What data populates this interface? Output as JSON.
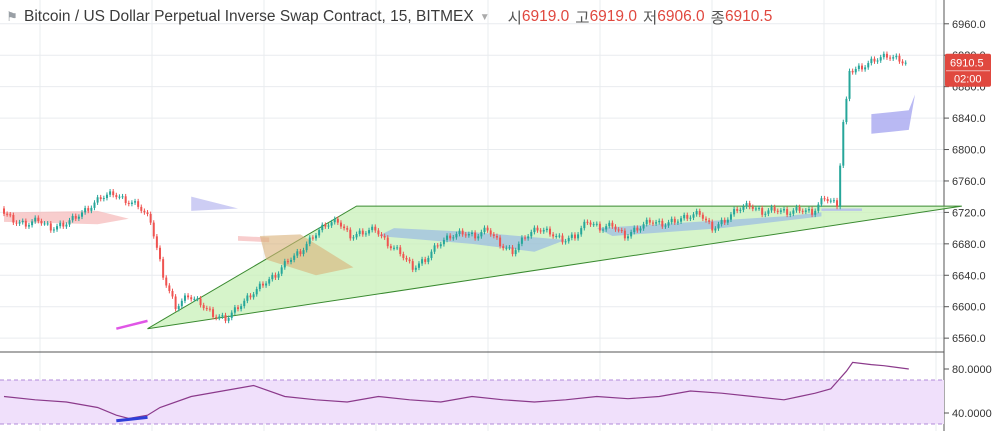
{
  "header": {
    "title": "Bitcoin / US Dollar Perpetual Inverse Swap Contract, 15, BITMEX",
    "caret_icon": "chevron-down-icon",
    "ohlc": [
      {
        "key": "시",
        "value": "6919.0"
      },
      {
        "key": "고",
        "value": "6919.0"
      },
      {
        "key": "저",
        "value": "6906.0"
      },
      {
        "key": "종",
        "value": "6910.5"
      }
    ],
    "value_color": "#e0483f"
  },
  "price_axis": {
    "ticks": [
      "6960.0",
      "6920.0",
      "6880.0",
      "6840.0",
      "6800.0",
      "6760.0",
      "6720.0",
      "6680.0",
      "6640.0",
      "6600.0",
      "6560.0"
    ],
    "last_price": "6910.5",
    "countdown": "02:00",
    "badge_color": "#e0483f"
  },
  "rsi_axis": {
    "ticks": [
      "80.0000",
      "40.0000"
    ]
  },
  "chart_data": [
    {
      "type": "candlestick",
      "symbol": "XBTUSD",
      "interval": "15",
      "ylim": [
        6550,
        6975
      ],
      "path_close": [
        [
          0,
          6725
        ],
        [
          4,
          6710
        ],
        [
          8,
          6705
        ],
        [
          12,
          6712
        ],
        [
          16,
          6700
        ],
        [
          20,
          6705
        ],
        [
          24,
          6715
        ],
        [
          28,
          6725
        ],
        [
          32,
          6740
        ],
        [
          36,
          6745
        ],
        [
          40,
          6735
        ],
        [
          44,
          6730
        ],
        [
          48,
          6710
        ],
        [
          52,
          6640
        ],
        [
          56,
          6600
        ],
        [
          60,
          6615
        ],
        [
          64,
          6605
        ],
        [
          68,
          6590
        ],
        [
          72,
          6585
        ],
        [
          76,
          6600
        ],
        [
          80,
          6615
        ],
        [
          84,
          6630
        ],
        [
          88,
          6640
        ],
        [
          92,
          6660
        ],
        [
          96,
          6670
        ],
        [
          100,
          6690
        ],
        [
          104,
          6705
        ],
        [
          108,
          6710
        ],
        [
          112,
          6690
        ],
        [
          116,
          6695
        ],
        [
          120,
          6700
        ],
        [
          124,
          6680
        ],
        [
          128,
          6670
        ],
        [
          132,
          6650
        ],
        [
          136,
          6660
        ],
        [
          140,
          6680
        ],
        [
          144,
          6690
        ],
        [
          148,
          6695
        ],
        [
          152,
          6690
        ],
        [
          156,
          6700
        ],
        [
          160,
          6680
        ],
        [
          164,
          6670
        ],
        [
          168,
          6690
        ],
        [
          172,
          6700
        ],
        [
          176,
          6695
        ],
        [
          180,
          6685
        ],
        [
          184,
          6690
        ],
        [
          188,
          6710
        ],
        [
          192,
          6700
        ],
        [
          196,
          6705
        ],
        [
          200,
          6690
        ],
        [
          204,
          6700
        ],
        [
          208,
          6710
        ],
        [
          212,
          6705
        ],
        [
          216,
          6710
        ],
        [
          220,
          6715
        ],
        [
          224,
          6720
        ],
        [
          228,
          6700
        ],
        [
          232,
          6710
        ],
        [
          236,
          6725
        ],
        [
          240,
          6730
        ],
        [
          244,
          6720
        ],
        [
          248,
          6725
        ],
        [
          252,
          6720
        ],
        [
          256,
          6725
        ],
        [
          260,
          6720
        ],
        [
          264,
          6740
        ],
        [
          268,
          6730
        ],
        [
          270,
          6835
        ],
        [
          272,
          6900
        ],
        [
          276,
          6905
        ],
        [
          280,
          6915
        ],
        [
          284,
          6920
        ],
        [
          288,
          6915
        ],
        [
          290,
          6910.5
        ]
      ],
      "last": {
        "open": 6919.0,
        "high": 6919.0,
        "low": 6906.0,
        "close": 6910.5
      },
      "annotations": [
        {
          "type": "trend-line",
          "from": [
            36,
            6572
          ],
          "to": [
            46,
            6582
          ],
          "color": "#e056e6"
        },
        {
          "type": "triangle",
          "points": [
            [
              46,
              6572
            ],
            [
              113,
              6728
            ],
            [
              307,
              6728
            ]
          ],
          "fill": "#c8f0b8",
          "stroke": "#3a8a30"
        }
      ]
    },
    {
      "type": "line",
      "name": "RSI",
      "ylim": [
        30,
        90
      ],
      "bands": [
        30,
        70
      ],
      "path": [
        [
          0,
          55
        ],
        [
          10,
          52
        ],
        [
          20,
          50
        ],
        [
          30,
          45
        ],
        [
          36,
          38
        ],
        [
          40,
          35
        ],
        [
          46,
          38
        ],
        [
          50,
          45
        ],
        [
          60,
          55
        ],
        [
          70,
          60
        ],
        [
          80,
          65
        ],
        [
          90,
          55
        ],
        [
          100,
          52
        ],
        [
          110,
          50
        ],
        [
          120,
          55
        ],
        [
          130,
          52
        ],
        [
          140,
          50
        ],
        [
          150,
          55
        ],
        [
          160,
          52
        ],
        [
          170,
          50
        ],
        [
          180,
          52
        ],
        [
          190,
          55
        ],
        [
          200,
          53
        ],
        [
          210,
          55
        ],
        [
          220,
          60
        ],
        [
          230,
          58
        ],
        [
          240,
          55
        ],
        [
          250,
          52
        ],
        [
          255,
          55
        ],
        [
          260,
          58
        ],
        [
          265,
          62
        ],
        [
          270,
          78
        ],
        [
          272,
          86
        ],
        [
          278,
          84
        ],
        [
          282,
          83
        ],
        [
          290,
          80
        ]
      ],
      "trend": {
        "from": [
          36,
          33
        ],
        "to": [
          46,
          36
        ],
        "color": "#2f3fd8"
      }
    }
  ]
}
